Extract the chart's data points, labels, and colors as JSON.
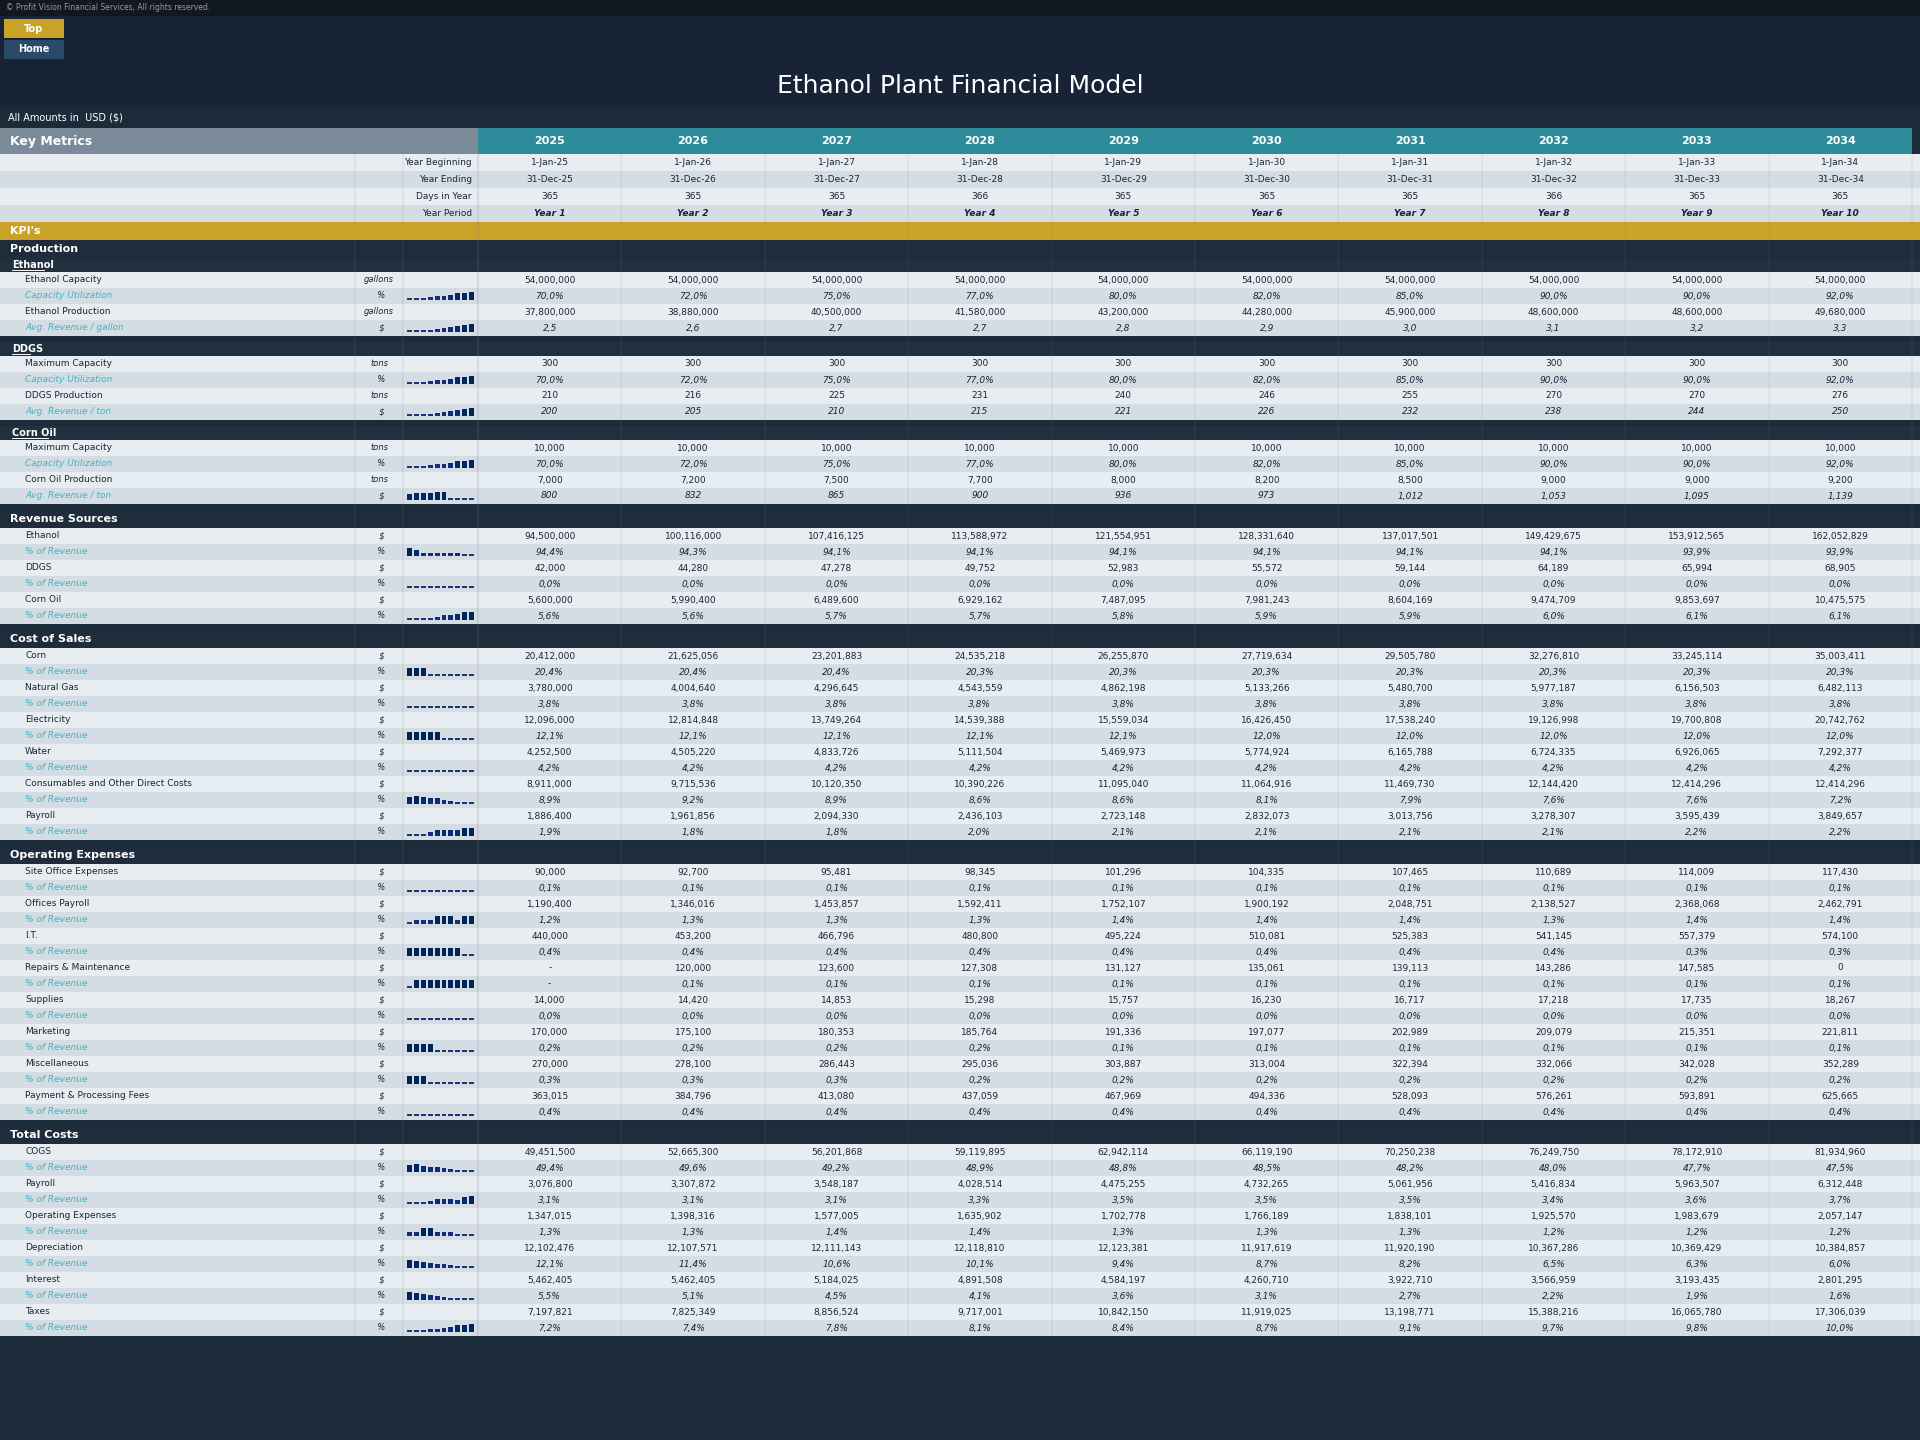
{
  "title": "Ethanol Plant Financial Model",
  "copyright": "© Profit Vision Financial Services, All rights reserved.",
  "subtitle": "All Amounts in  USD ($)",
  "bg_color": "#1c2b3a",
  "header_teal": "#2e8b9a",
  "header_gold": "#c9a227",
  "section_dark": "#1e2d3d",
  "teal_text": "#3ab8c8",
  "white_text": "#ffffff",
  "years": [
    "2025",
    "2026",
    "2027",
    "2028",
    "2029",
    "2030",
    "2031",
    "2032",
    "2033",
    "2034"
  ],
  "year_beginning": [
    "1-Jan-25",
    "1-Jan-26",
    "1-Jan-27",
    "1-Jan-28",
    "1-Jan-29",
    "1-Jan-30",
    "1-Jan-31",
    "1-Jan-32",
    "1-Jan-33",
    "1-Jan-34"
  ],
  "year_ending": [
    "31-Dec-25",
    "31-Dec-26",
    "31-Dec-27",
    "31-Dec-28",
    "31-Dec-29",
    "31-Dec-30",
    "31-Dec-31",
    "31-Dec-32",
    "31-Dec-33",
    "31-Dec-34"
  ],
  "days_in_year": [
    "365",
    "365",
    "365",
    "366",
    "365",
    "365",
    "365",
    "366",
    "365",
    "365"
  ],
  "year_period": [
    "Year 1",
    "Year 2",
    "Year 3",
    "Year 4",
    "Year 5",
    "Year 6",
    "Year 7",
    "Year 8",
    "Year 9",
    "Year 10"
  ],
  "ethanol_capacity": [
    "54,000,000",
    "54,000,000",
    "54,000,000",
    "54,000,000",
    "54,000,000",
    "54,000,000",
    "54,000,000",
    "54,000,000",
    "54,000,000",
    "54,000,000"
  ],
  "ethanol_util": [
    "70,0%",
    "72,0%",
    "75,0%",
    "77,0%",
    "80,0%",
    "82,0%",
    "85,0%",
    "90,0%",
    "90,0%",
    "92,0%"
  ],
  "ethanol_prod": [
    "37,800,000",
    "38,880,000",
    "40,500,000",
    "41,580,000",
    "43,200,000",
    "44,280,000",
    "45,900,000",
    "48,600,000",
    "48,600,000",
    "49,680,000"
  ],
  "ethanol_avg_rev": [
    "2,5",
    "2,6",
    "2,7",
    "2,7",
    "2,8",
    "2,9",
    "3,0",
    "3,1",
    "3,2",
    "3,3"
  ],
  "ddgs_max_cap": [
    "300",
    "300",
    "300",
    "300",
    "300",
    "300",
    "300",
    "300",
    "300",
    "300"
  ],
  "ddgs_util": [
    "70,0%",
    "72,0%",
    "75,0%",
    "77,0%",
    "80,0%",
    "82,0%",
    "85,0%",
    "90,0%",
    "90,0%",
    "92,0%"
  ],
  "ddgs_prod": [
    "210",
    "216",
    "225",
    "231",
    "240",
    "246",
    "255",
    "270",
    "270",
    "276"
  ],
  "ddgs_avg_rev": [
    "200",
    "205",
    "210",
    "215",
    "221",
    "226",
    "232",
    "238",
    "244",
    "250"
  ],
  "corn_max_cap": [
    "10,000",
    "10,000",
    "10,000",
    "10,000",
    "10,000",
    "10,000",
    "10,000",
    "10,000",
    "10,000",
    "10,000"
  ],
  "corn_util": [
    "70,0%",
    "72,0%",
    "75,0%",
    "77,0%",
    "80,0%",
    "82,0%",
    "85,0%",
    "90,0%",
    "90,0%",
    "92,0%"
  ],
  "corn_prod": [
    "7,000",
    "7,200",
    "7,500",
    "7,700",
    "8,000",
    "8,200",
    "8,500",
    "9,000",
    "9,000",
    "9,200"
  ],
  "corn_avg_rev": [
    "800",
    "832",
    "865",
    "900",
    "936",
    "973",
    "1,012",
    "1,053",
    "1,095",
    "1,139"
  ],
  "rev_ethanol": [
    "94,500,000",
    "100,116,000",
    "107,416,125",
    "113,588,972",
    "121,554,951",
    "128,331,640",
    "137,017,501",
    "149,429,675",
    "153,912,565",
    "162,052,829"
  ],
  "rev_ethanol_pct": [
    "94,4%",
    "94,3%",
    "94,1%",
    "94,1%",
    "94,1%",
    "94,1%",
    "94,1%",
    "94,1%",
    "93,9%",
    "93,9%"
  ],
  "rev_ddgs": [
    "42,000",
    "44,280",
    "47,278",
    "49,752",
    "52,983",
    "55,572",
    "59,144",
    "64,189",
    "65,994",
    "68,905"
  ],
  "rev_ddgs_pct": [
    "0,0%",
    "0,0%",
    "0,0%",
    "0,0%",
    "0,0%",
    "0,0%",
    "0,0%",
    "0,0%",
    "0,0%",
    "0,0%"
  ],
  "rev_corn": [
    "5,600,000",
    "5,990,400",
    "6,489,600",
    "6,929,162",
    "7,487,095",
    "7,981,243",
    "8,604,169",
    "9,474,709",
    "9,853,697",
    "10,475,575"
  ],
  "rev_corn_pct": [
    "5,6%",
    "5,6%",
    "5,7%",
    "5,7%",
    "5,8%",
    "5,9%",
    "5,9%",
    "6,0%",
    "6,1%",
    "6,1%"
  ],
  "cogs_corn": [
    "20,412,000",
    "21,625,056",
    "23,201,883",
    "24,535,218",
    "26,255,870",
    "27,719,634",
    "29,505,780",
    "32,276,810",
    "33,245,114",
    "35,003,411"
  ],
  "cogs_corn_pct": [
    "20,4%",
    "20,4%",
    "20,4%",
    "20,3%",
    "20,3%",
    "20,3%",
    "20,3%",
    "20,3%",
    "20,3%",
    "20,3%"
  ],
  "cogs_nat_gas": [
    "3,780,000",
    "4,004,640",
    "4,296,645",
    "4,543,559",
    "4,862,198",
    "5,133,266",
    "5,480,700",
    "5,977,187",
    "6,156,503",
    "6,482,113"
  ],
  "cogs_nat_gas_pct": [
    "3,8%",
    "3,8%",
    "3,8%",
    "3,8%",
    "3,8%",
    "3,8%",
    "3,8%",
    "3,8%",
    "3,8%",
    "3,8%"
  ],
  "cogs_elec": [
    "12,096,000",
    "12,814,848",
    "13,749,264",
    "14,539,388",
    "15,559,034",
    "16,426,450",
    "17,538,240",
    "19,126,998",
    "19,700,808",
    "20,742,762"
  ],
  "cogs_elec_pct": [
    "12,1%",
    "12,1%",
    "12,1%",
    "12,1%",
    "12,1%",
    "12,0%",
    "12,0%",
    "12,0%",
    "12,0%",
    "12,0%"
  ],
  "cogs_water": [
    "4,252,500",
    "4,505,220",
    "4,833,726",
    "5,111,504",
    "5,469,973",
    "5,774,924",
    "6,165,788",
    "6,724,335",
    "6,926,065",
    "7,292,377"
  ],
  "cogs_water_pct": [
    "4,2%",
    "4,2%",
    "4,2%",
    "4,2%",
    "4,2%",
    "4,2%",
    "4,2%",
    "4,2%",
    "4,2%",
    "4,2%"
  ],
  "cogs_consumables": [
    "8,911,000",
    "9,715,536",
    "10,120,350",
    "10,390,226",
    "11,095,040",
    "11,064,916",
    "11,469,730",
    "12,144,420",
    "12,414,296",
    "12,414,296"
  ],
  "cogs_consumables_pct": [
    "8,9%",
    "9,2%",
    "8,9%",
    "8,6%",
    "8,6%",
    "8,1%",
    "7,9%",
    "7,6%",
    "7,6%",
    "7,2%"
  ],
  "cogs_payroll": [
    "1,886,400",
    "1,961,856",
    "2,094,330",
    "2,436,103",
    "2,723,148",
    "2,832,073",
    "3,013,756",
    "3,278,307",
    "3,595,439",
    "3,849,657"
  ],
  "cogs_payroll_pct": [
    "1,9%",
    "1,8%",
    "1,8%",
    "2,0%",
    "2,1%",
    "2,1%",
    "2,1%",
    "2,1%",
    "2,2%",
    "2,2%"
  ],
  "opex_site": [
    "90,000",
    "92,700",
    "95,481",
    "98,345",
    "101,296",
    "104,335",
    "107,465",
    "110,689",
    "114,009",
    "117,430"
  ],
  "opex_site_pct": [
    "0,1%",
    "0,1%",
    "0,1%",
    "0,1%",
    "0,1%",
    "0,1%",
    "0,1%",
    "0,1%",
    "0,1%",
    "0,1%"
  ],
  "opex_offices_payroll": [
    "1,190,400",
    "1,346,016",
    "1,453,857",
    "1,592,411",
    "1,752,107",
    "1,900,192",
    "2,048,751",
    "2,138,527",
    "2,368,068",
    "2,462,791"
  ],
  "opex_offices_payroll_pct": [
    "1,2%",
    "1,3%",
    "1,3%",
    "1,3%",
    "1,4%",
    "1,4%",
    "1,4%",
    "1,3%",
    "1,4%",
    "1,4%"
  ],
  "opex_it": [
    "440,000",
    "453,200",
    "466,796",
    "480,800",
    "495,224",
    "510,081",
    "525,383",
    "541,145",
    "557,379",
    "574,100"
  ],
  "opex_it_pct": [
    "0,4%",
    "0,4%",
    "0,4%",
    "0,4%",
    "0,4%",
    "0,4%",
    "0,4%",
    "0,4%",
    "0,3%",
    "0,3%"
  ],
  "opex_rm": [
    "-",
    "120,000",
    "123,600",
    "127,308",
    "131,127",
    "135,061",
    "139,113",
    "143,286",
    "147,585",
    "0"
  ],
  "opex_rm_pct": [
    "-",
    "0,1%",
    "0,1%",
    "0,1%",
    "0,1%",
    "0,1%",
    "0,1%",
    "0,1%",
    "0,1%",
    "0,1%"
  ],
  "opex_supplies": [
    "14,000",
    "14,420",
    "14,853",
    "15,298",
    "15,757",
    "16,230",
    "16,717",
    "17,218",
    "17,735",
    "18,267"
  ],
  "opex_supplies_pct": [
    "0,0%",
    "0,0%",
    "0,0%",
    "0,0%",
    "0,0%",
    "0,0%",
    "0,0%",
    "0,0%",
    "0,0%",
    "0,0%"
  ],
  "opex_marketing": [
    "170,000",
    "175,100",
    "180,353",
    "185,764",
    "191,336",
    "197,077",
    "202,989",
    "209,079",
    "215,351",
    "221,811"
  ],
  "opex_marketing_pct": [
    "0,2%",
    "0,2%",
    "0,2%",
    "0,2%",
    "0,1%",
    "0,1%",
    "0,1%",
    "0,1%",
    "0,1%",
    "0,1%"
  ],
  "opex_misc": [
    "270,000",
    "278,100",
    "286,443",
    "295,036",
    "303,887",
    "313,004",
    "322,394",
    "332,066",
    "342,028",
    "352,289"
  ],
  "opex_misc_pct": [
    "0,3%",
    "0,3%",
    "0,3%",
    "0,2%",
    "0,2%",
    "0,2%",
    "0,2%",
    "0,2%",
    "0,2%",
    "0,2%"
  ],
  "opex_pf": [
    "363,015",
    "384,796",
    "413,080",
    "437,059",
    "467,969",
    "494,336",
    "528,093",
    "576,261",
    "593,891",
    "625,665"
  ],
  "opex_pf_pct": [
    "0,4%",
    "0,4%",
    "0,4%",
    "0,4%",
    "0,4%",
    "0,4%",
    "0,4%",
    "0,4%",
    "0,4%",
    "0,4%"
  ],
  "total_cogs": [
    "49,451,500",
    "52,665,300",
    "56,201,868",
    "59,119,895",
    "62,942,114",
    "66,119,190",
    "70,250,238",
    "76,249,750",
    "78,172,910",
    "81,934,960"
  ],
  "total_cogs_pct": [
    "49,4%",
    "49,6%",
    "49,2%",
    "48,9%",
    "48,8%",
    "48,5%",
    "48,2%",
    "48,0%",
    "47,7%",
    "47,5%"
  ],
  "total_payroll": [
    "3,076,800",
    "3,307,872",
    "3,548,187",
    "4,028,514",
    "4,475,255",
    "4,732,265",
    "5,061,956",
    "5,416,834",
    "5,963,507",
    "6,312,448"
  ],
  "total_payroll_pct": [
    "3,1%",
    "3,1%",
    "3,1%",
    "3,3%",
    "3,5%",
    "3,5%",
    "3,5%",
    "3,4%",
    "3,6%",
    "3,7%"
  ],
  "total_opex": [
    "1,347,015",
    "1,398,316",
    "1,577,005",
    "1,635,902",
    "1,702,778",
    "1,766,189",
    "1,838,101",
    "1,925,570",
    "1,983,679",
    "2,057,147"
  ],
  "total_opex_pct": [
    "1,3%",
    "1,3%",
    "1,4%",
    "1,4%",
    "1,3%",
    "1,3%",
    "1,3%",
    "1,2%",
    "1,2%",
    "1,2%"
  ],
  "depreciation": [
    "12,102,476",
    "12,107,571",
    "12,111,143",
    "12,118,810",
    "12,123,381",
    "11,917,619",
    "11,920,190",
    "10,367,286",
    "10,369,429",
    "10,384,857"
  ],
  "depreciation_pct": [
    "12,1%",
    "11,4%",
    "10,6%",
    "10,1%",
    "9,4%",
    "8,7%",
    "8,2%",
    "6,5%",
    "6,3%",
    "6,0%"
  ],
  "interest": [
    "5,462,405",
    "5,462,405",
    "5,184,025",
    "4,891,508",
    "4,584,197",
    "4,260,710",
    "3,922,710",
    "3,566,959",
    "3,193,435",
    "2,801,295"
  ],
  "interest_pct": [
    "5,5%",
    "5,1%",
    "4,5%",
    "4,1%",
    "3,6%",
    "3,1%",
    "2,7%",
    "2,2%",
    "1,9%",
    "1,6%"
  ],
  "taxes": [
    "7,197,821",
    "7,825,349",
    "8,856,524",
    "9,717,001",
    "10,842,150",
    "11,919,025",
    "13,198,771",
    "15,388,216",
    "16,065,780",
    "17,306,039"
  ],
  "taxes_pct": [
    "7,2%",
    "7,4%",
    "7,8%",
    "8,1%",
    "8,4%",
    "8,7%",
    "9,1%",
    "9,7%",
    "9,8%",
    "10,0%"
  ]
}
